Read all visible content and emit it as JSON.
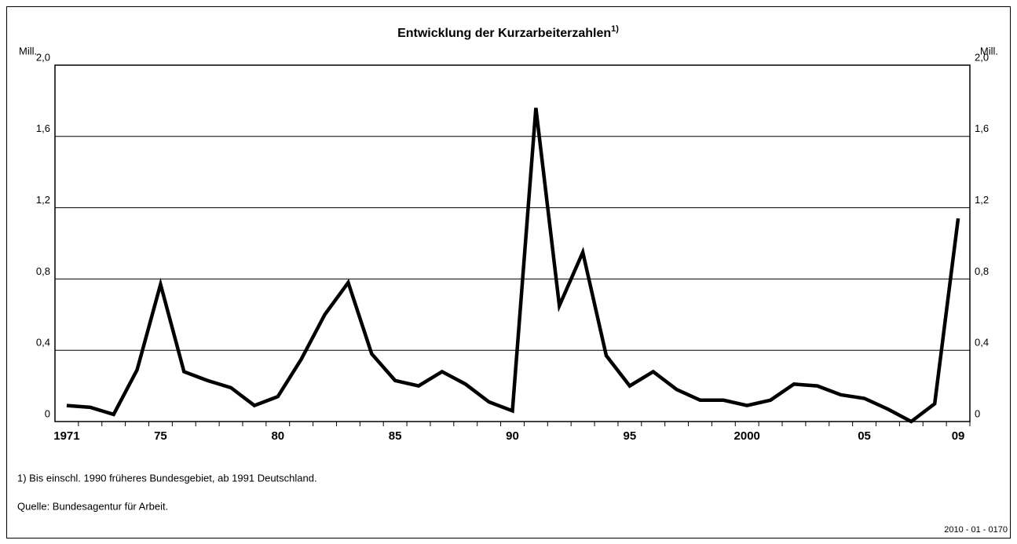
{
  "chart_data": {
    "type": "line",
    "title": "Entwicklung der Kurzarbeiterzahlen",
    "title_note": "1)",
    "y_unit": "Mill.",
    "y2_unit": "Mill.",
    "x": [
      1971,
      1972,
      1973,
      1974,
      1975,
      1976,
      1977,
      1978,
      1979,
      1980,
      1981,
      1982,
      1983,
      1984,
      1985,
      1986,
      1987,
      1988,
      1989,
      1990,
      1991,
      1992,
      1993,
      1994,
      1995,
      1996,
      1997,
      1998,
      1999,
      2000,
      2001,
      2002,
      2003,
      2004,
      2005,
      2006,
      2007,
      2008,
      2009
    ],
    "series": [
      {
        "name": "Kurzarbeiter",
        "color": "#000000",
        "values": [
          0.09,
          0.08,
          0.04,
          0.29,
          0.77,
          0.28,
          0.23,
          0.19,
          0.09,
          0.14,
          0.35,
          0.6,
          0.78,
          0.38,
          0.23,
          0.2,
          0.28,
          0.21,
          0.11,
          0.06,
          1.76,
          0.65,
          0.95,
          0.37,
          0.2,
          0.28,
          0.18,
          0.12,
          0.12,
          0.09,
          0.12,
          0.21,
          0.2,
          0.15,
          0.13,
          0.07,
          0.0,
          0.1,
          1.14
        ]
      }
    ],
    "xlim": [
      1970.5,
      2009.5
    ],
    "xticks": [
      {
        "value": 1971,
        "label": "1971"
      },
      {
        "value": 1975,
        "label": "75"
      },
      {
        "value": 1980,
        "label": "80"
      },
      {
        "value": 1985,
        "label": "85"
      },
      {
        "value": 1990,
        "label": "90"
      },
      {
        "value": 1995,
        "label": "95"
      },
      {
        "value": 2000,
        "label": "2000"
      },
      {
        "value": 2005,
        "label": "05"
      },
      {
        "value": 2009,
        "label": "09"
      }
    ],
    "ylim": [
      0,
      2.0
    ],
    "yticks": [
      0,
      {
        "value": 0.4,
        "label": "0,4"
      },
      {
        "value": 0.8,
        "label": "0,8"
      },
      {
        "value": 1.2,
        "label": "1,2"
      },
      {
        "value": 1.6,
        "label": "1,6"
      },
      {
        "value": 2.0,
        "label": "2,0"
      }
    ],
    "y2lim": [
      0,
      2.0
    ],
    "y2ticks": [
      0,
      {
        "value": 0.4,
        "label": "0,4"
      },
      {
        "value": 0.8,
        "label": "0,8"
      },
      {
        "value": 1.2,
        "label": "1,2"
      },
      {
        "value": 1.6,
        "label": "1,6"
      },
      {
        "value": 2.0,
        "label": "2,0"
      }
    ],
    "grid": true,
    "footnotes": [
      "1) Bis einschl. 1990 früheres Bundesgebiet, ab 1991 Deutschland.",
      "Quelle: Bundesagentur für Arbeit."
    ],
    "code": "2010 - 01 - 0170"
  }
}
